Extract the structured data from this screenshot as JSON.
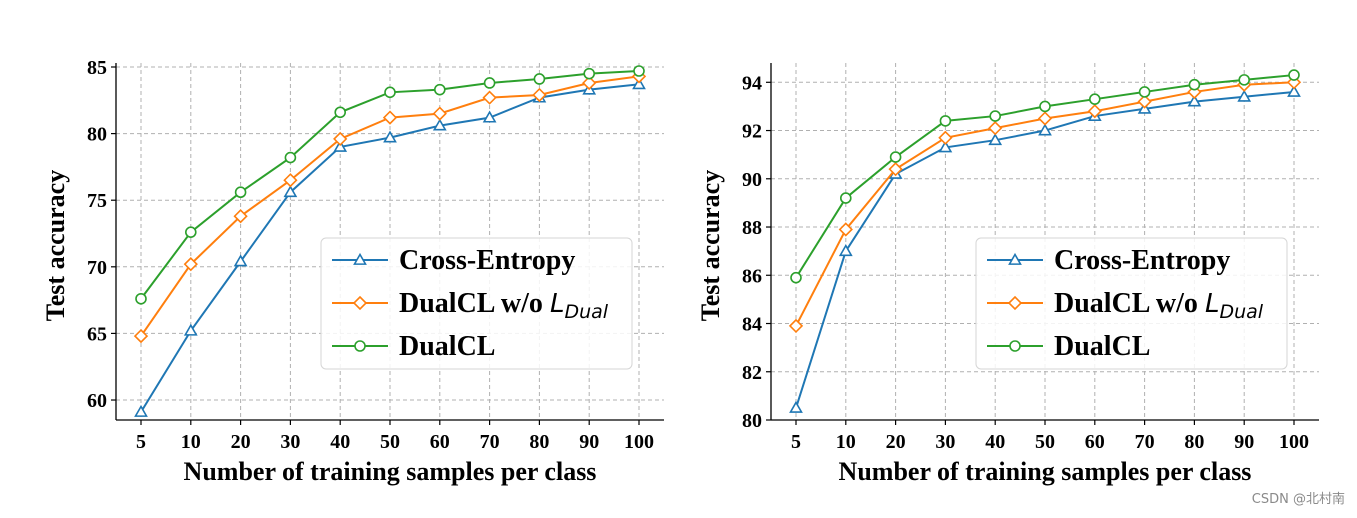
{
  "colors": {
    "cross_entropy": "#1f77b4",
    "wo_dual": "#ff7f0e",
    "dualcl": "#2ca02c",
    "grid": "#b0b0b0",
    "axis": "#000000"
  },
  "watermark": "CSDN @北村南",
  "chart_data": [
    {
      "type": "line",
      "categories": [
        "5",
        "10",
        "20",
        "30",
        "40",
        "50",
        "60",
        "70",
        "80",
        "90",
        "100"
      ],
      "xlabel": "Number of training samples per class",
      "ylabel": "Test accuracy",
      "ylim": [
        58.5,
        85.3
      ],
      "yticks": [
        60,
        65,
        70,
        75,
        80,
        85
      ],
      "grid": true,
      "legend_position": "lower-right",
      "series": [
        {
          "name": "Cross-Entropy",
          "legend_text": "Cross-Entropy",
          "legend_math": "",
          "marker": "triangle",
          "values": [
            59.1,
            65.2,
            70.4,
            75.6,
            79.0,
            79.7,
            80.6,
            81.2,
            82.7,
            83.3,
            83.7
          ]
        },
        {
          "name": "DualCL w/o L_Dual",
          "legend_text": "DualCL w/o ",
          "legend_math": "L",
          "legend_sub": "Dual",
          "marker": "diamond",
          "values": [
            64.8,
            70.2,
            73.8,
            76.5,
            79.6,
            81.2,
            81.5,
            82.7,
            82.9,
            83.8,
            84.3
          ]
        },
        {
          "name": "DualCL",
          "legend_text": "DualCL",
          "legend_math": "",
          "marker": "circle",
          "values": [
            67.6,
            72.6,
            75.6,
            78.2,
            81.6,
            83.1,
            83.3,
            83.8,
            84.1,
            84.5,
            84.7
          ]
        }
      ]
    },
    {
      "type": "line",
      "categories": [
        "5",
        "10",
        "20",
        "30",
        "40",
        "50",
        "60",
        "70",
        "80",
        "90",
        "100"
      ],
      "xlabel": "Number of training samples per class",
      "ylabel": "Test accuracy",
      "ylim": [
        80,
        94.8
      ],
      "yticks": [
        80,
        82,
        84,
        86,
        88,
        90,
        92,
        94
      ],
      "grid": true,
      "legend_position": "lower-right",
      "series": [
        {
          "name": "Cross-Entropy",
          "legend_text": "Cross-Entropy",
          "legend_math": "",
          "marker": "triangle",
          "values": [
            80.5,
            87.0,
            90.2,
            91.3,
            91.6,
            92.0,
            92.6,
            92.9,
            93.2,
            93.4,
            93.6
          ]
        },
        {
          "name": "DualCL w/o L_Dual",
          "legend_text": "DualCL w/o ",
          "legend_math": "L",
          "legend_sub": "Dual",
          "marker": "diamond",
          "values": [
            83.9,
            87.9,
            90.4,
            91.7,
            92.1,
            92.5,
            92.8,
            93.2,
            93.6,
            93.9,
            94.0
          ]
        },
        {
          "name": "DualCL",
          "legend_text": "DualCL",
          "legend_math": "",
          "marker": "circle",
          "values": [
            85.9,
            89.2,
            90.9,
            92.4,
            92.6,
            93.0,
            93.3,
            93.6,
            93.9,
            94.1,
            94.3
          ]
        }
      ]
    }
  ]
}
